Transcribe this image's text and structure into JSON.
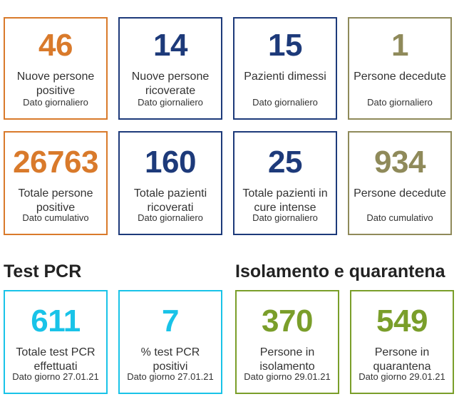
{
  "colors": {
    "orange": "#d97a2b",
    "navy": "#1d3a7a",
    "olive": "#8f8a5a",
    "cyan": "#19c3e8",
    "green": "#7a9e2a"
  },
  "daily": [
    {
      "value": "46",
      "label": "Nuove persone positive",
      "sub": "Dato giornaliero"
    },
    {
      "value": "14",
      "label": "Nuove persone ricoverate",
      "sub": "Dato giornaliero"
    },
    {
      "value": "15",
      "label": "Pazienti dimessi",
      "sub": "Dato giornaliero"
    },
    {
      "value": "1",
      "label": "Persone decedute",
      "sub": "Dato giornaliero"
    }
  ],
  "totals": [
    {
      "value": "26763",
      "label": "Totale persone positive",
      "sub": "Dato cumulativo"
    },
    {
      "value": "160",
      "label": "Totale pazienti ricoverati",
      "sub": "Dato giornaliero"
    },
    {
      "value": "25",
      "label": "Totale pazienti in cure intense",
      "sub": "Dato giornaliero"
    },
    {
      "value": "934",
      "label": "Persone decedute",
      "sub": "Dato cumulativo"
    }
  ],
  "pcr": {
    "title": "Test PCR",
    "cards": [
      {
        "value": "611",
        "label": "Totale test PCR effettuati",
        "sub": "Dato giorno 27.01.21"
      },
      {
        "value": "7",
        "label": "% test PCR positivi",
        "sub": "Dato giorno 27.01.21"
      }
    ]
  },
  "isolation": {
    "title": "Isolamento e quarantena",
    "cards": [
      {
        "value": "370",
        "label": "Persone in isolamento",
        "sub": "Dato giorno 29.01.21"
      },
      {
        "value": "549",
        "label": "Persone in quarantena",
        "sub": "Dato giorno 29.01.21"
      }
    ]
  }
}
